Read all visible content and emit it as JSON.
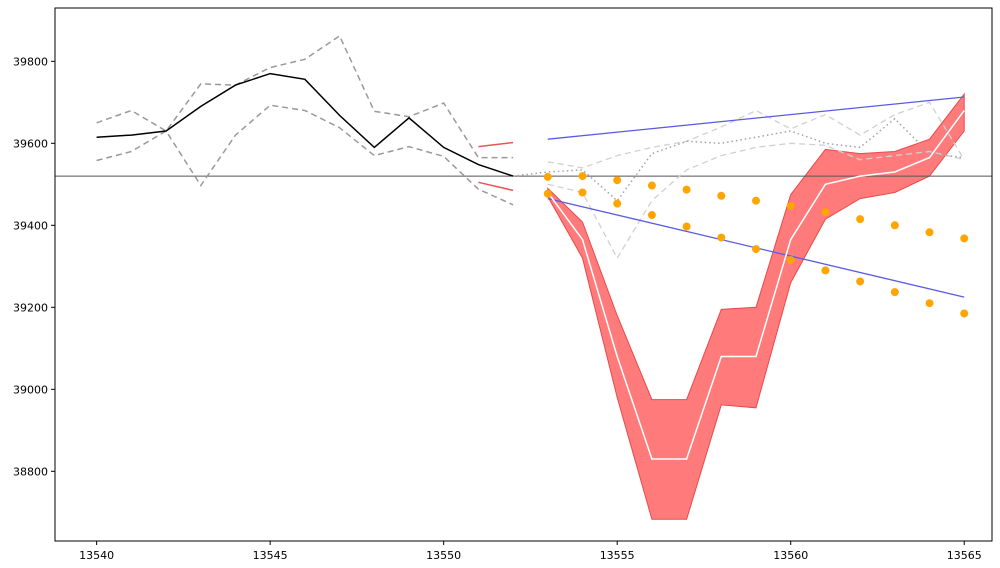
{
  "chart_data": {
    "type": "line",
    "title": "",
    "xlabel": "",
    "ylabel": "",
    "xlim": [
      13538.8,
      13565.8
    ],
    "ylim": [
      38630,
      39930
    ],
    "x_ticks": [
      13540,
      13545,
      13550,
      13555,
      13560,
      13565
    ],
    "y_ticks": [
      38800,
      39000,
      39200,
      39400,
      39600,
      39800
    ],
    "grid": false,
    "hline": 39520,
    "history": {
      "x": [
        13540,
        13541,
        13542,
        13543,
        13544,
        13545,
        13546,
        13547,
        13548,
        13549,
        13550,
        13551,
        13552
      ],
      "close": [
        39615,
        39620,
        39630,
        39690,
        39742,
        39770,
        39756,
        39668,
        39590,
        39662,
        39590,
        39548,
        39520
      ],
      "upper": [
        39650,
        39680,
        39630,
        39745,
        39742,
        39785,
        39805,
        39862,
        39678,
        39665,
        39698,
        39565,
        39565
      ],
      "lower": [
        39558,
        39580,
        39630,
        39497,
        39620,
        39693,
        39680,
        39638,
        39570,
        39592,
        39568,
        39488,
        39450
      ]
    },
    "red_stubs": [
      {
        "x": [
          13551,
          13552
        ],
        "y": [
          39592,
          39602
        ]
      },
      {
        "x": [
          13551,
          13552
        ],
        "y": [
          39505,
          39485
        ]
      }
    ],
    "forecast": {
      "x": [
        13553,
        13554,
        13555,
        13556,
        13557,
        13558,
        13559,
        13560,
        13561,
        13562,
        13563,
        13564,
        13565
      ],
      "mean": [
        39480,
        39365,
        39080,
        38830,
        38830,
        39080,
        39080,
        39365,
        39500,
        39520,
        39530,
        39565,
        39680
      ],
      "upper": [
        39490,
        39408,
        39180,
        38975,
        38975,
        39195,
        39200,
        39475,
        39585,
        39575,
        39580,
        39610,
        39720
      ],
      "lower": [
        39470,
        39320,
        38980,
        38683,
        38683,
        38962,
        38955,
        39260,
        39415,
        39465,
        39480,
        39520,
        39630
      ]
    },
    "trend_lines": [
      {
        "x": [
          13553,
          13565
        ],
        "y": [
          39610,
          39713
        ]
      },
      {
        "x": [
          13553,
          13565
        ],
        "y": [
          39465,
          39225
        ]
      }
    ],
    "dot_series_upper": {
      "x": [
        13553,
        13554,
        13555,
        13556,
        13557,
        13558,
        13559,
        13560,
        13561,
        13562,
        13563,
        13564,
        13565
      ],
      "y": [
        39518,
        39520,
        39510,
        39497,
        39487,
        39472,
        39460,
        39447,
        39432,
        39415,
        39400,
        39383,
        39368
      ]
    },
    "dot_series_lower": {
      "x": [
        13553,
        13554,
        13555,
        13556,
        13557,
        13558,
        13559,
        13560,
        13561,
        13562,
        13563,
        13564,
        13565
      ],
      "y": [
        39477,
        39480,
        39453,
        39425,
        39397,
        39370,
        39342,
        39315,
        39290,
        39263,
        39237,
        39210,
        39185
      ]
    },
    "dotted_line": {
      "x": [
        13552,
        13553,
        13554,
        13555,
        13556,
        13557,
        13558,
        13559,
        13560,
        13561,
        13562,
        13563,
        13564,
        13565
      ],
      "y": [
        39520,
        39530,
        39535,
        39460,
        39575,
        39605,
        39600,
        39615,
        39630,
        39600,
        39590,
        39660,
        39575,
        39565
      ]
    },
    "light_dashed_lines": [
      {
        "x": [
          13553,
          13554,
          13555,
          13556,
          13557,
          13558,
          13559,
          13560,
          13561,
          13562,
          13563,
          13564,
          13565
        ],
        "y": [
          39555,
          39540,
          39570,
          39590,
          39605,
          39640,
          39680,
          39635,
          39670,
          39620,
          39670,
          39700,
          39560
        ]
      },
      {
        "x": [
          13553,
          13554,
          13555,
          13556,
          13557,
          13558,
          13559,
          13560,
          13561,
          13562,
          13563,
          13564,
          13565
        ],
        "y": [
          39500,
          39480,
          39320,
          39460,
          39535,
          39570,
          39590,
          39600,
          39595,
          39560,
          39570,
          39580,
          39560
        ]
      }
    ],
    "colors": {
      "history": "#000000",
      "history_bounds": "#999999",
      "red_stub": "#e85555",
      "band_fill": "#ff7b7b",
      "band_edge": "#e84a4a",
      "mean": "#ffffff",
      "trend": "#5a5ae6",
      "dots": "#ffa500",
      "dotted": "#a0a0b0",
      "light_dashed": "#d0d0d0",
      "hline": "#555555"
    }
  }
}
